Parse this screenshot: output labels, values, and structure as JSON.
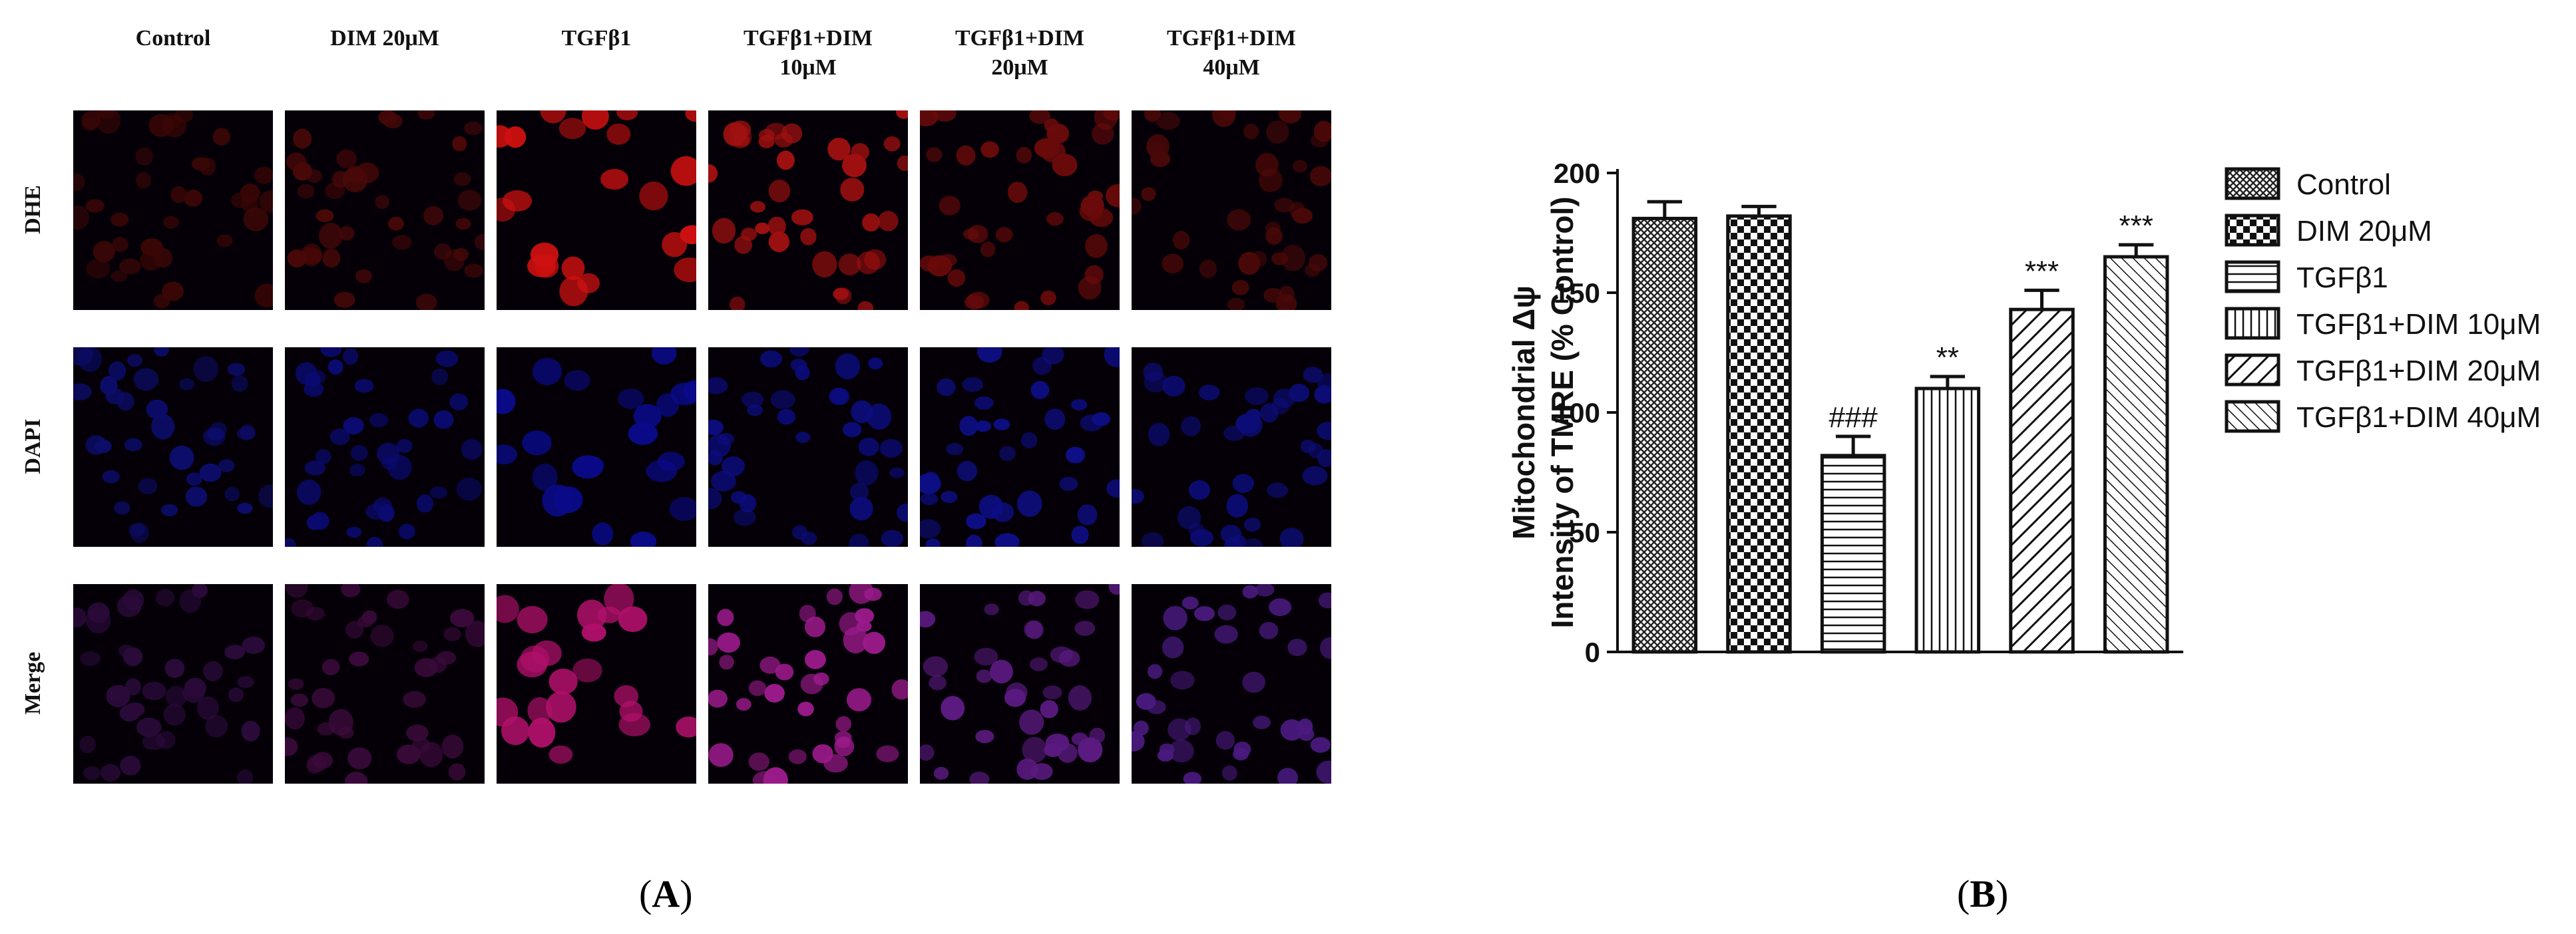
{
  "panel_a": {
    "letter": "A",
    "columns": [
      "Control",
      "DIM 20μM",
      "TGFβ1",
      "TGFβ1+DIM\n10μM",
      "TGFβ1+DIM\n20μM",
      "TGFβ1+DIM\n40μM"
    ],
    "rows": [
      "DHE",
      "DAPI",
      "Merge"
    ],
    "image_colors": {
      "DHE": [
        "#3a0606",
        "#4a0808",
        "#d01010",
        "#a01010",
        "#6a0a0a",
        "#4a0808"
      ],
      "DAPI": [
        "#0c0c6a",
        "#0a0a70",
        "#0a0a8a",
        "#0c0c80",
        "#0e0e86",
        "#0c0c78"
      ],
      "Merge": [
        "#2a0a3a",
        "#3a0a3a",
        "#b0106a",
        "#9a1a8a",
        "#5a1a80",
        "#4a1a80"
      ]
    }
  },
  "panel_b": {
    "letter": "B",
    "chart_data": {
      "type": "bar",
      "categories": [
        "Control",
        "DIM 20μM",
        "TGFβ1",
        "TGFβ1+DIM 10μM",
        "TGFβ1+DIM 20μM",
        "TGFβ1+DIM 40μM"
      ],
      "values": [
        181,
        182,
        82,
        110,
        143,
        165
      ],
      "errors": [
        7,
        4,
        8,
        5,
        8,
        5
      ],
      "annotations": [
        "",
        "",
        "###",
        "**",
        "***",
        "***"
      ],
      "patterns": [
        "crosshatch",
        "checker",
        "horizontal",
        "vertical",
        "diagonal",
        "diagonal-dense"
      ],
      "ylabel_line1": "Mitochondrial Δψ",
      "ylabel_line2": "Intensity of TMRE (% Control)",
      "xlabel": "",
      "ylim": [
        0,
        200
      ],
      "yticks": [
        0,
        50,
        100,
        150,
        200
      ],
      "legend": [
        "Control",
        "DIM 20μM",
        "TGFβ1",
        "TGFβ1+DIM 10μM",
        "TGFβ1+DIM 20μM",
        "TGFβ1+DIM 40μM"
      ],
      "legend_position": "right"
    }
  }
}
